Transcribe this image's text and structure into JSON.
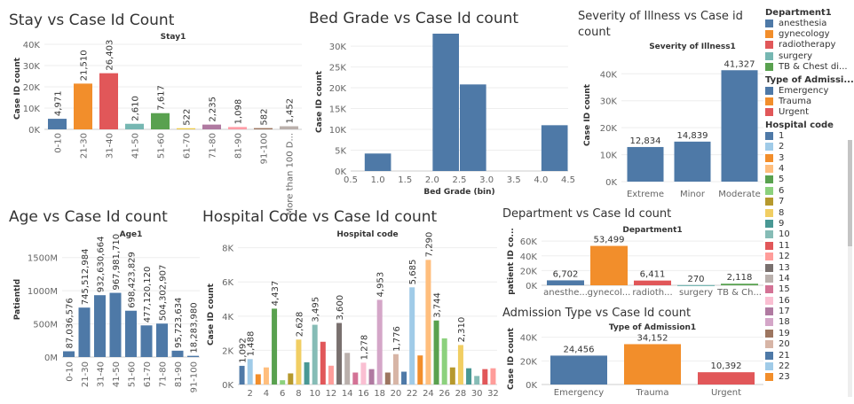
{
  "chart_data": [
    {
      "id": "stay",
      "type": "bar",
      "title": "Stay vs Case Id Count",
      "subtitle": "Stay1",
      "ylabel": "Case ID count",
      "ylim": [
        0,
        40000
      ],
      "yticks": [
        0,
        10000,
        20000,
        30000,
        40000
      ],
      "ytick_labels": [
        "0K",
        "10K",
        "20K",
        "30K",
        "40K"
      ],
      "categories": [
        "0-10",
        "21-30",
        "31-40",
        "41-50",
        "51-60",
        "61-70",
        "71-80",
        "81-90",
        "91-100",
        "More than 100 D..."
      ],
      "values": [
        4971,
        21510,
        26403,
        2610,
        7617,
        522,
        2235,
        1098,
        582,
        1452
      ],
      "data_labels": [
        "4,971",
        "21,510",
        "26,403",
        "2,610",
        "7,617",
        "522",
        "2,235",
        "1,098",
        "582",
        "1,452"
      ],
      "colors": [
        "#4e79a7",
        "#f28e2b",
        "#e15759",
        "#76b7b2",
        "#59a14f",
        "#edc948",
        "#b07aa1",
        "#ff9da7",
        "#9c755f",
        "#bab0ac"
      ]
    },
    {
      "id": "bed",
      "type": "bar",
      "title": "Bed Grade vs Case Id count",
      "xlabel": "Bed Grade (bin)",
      "ylabel": "Case ID count",
      "xlim": [
        0.5,
        4.5
      ],
      "xticks": [
        0.5,
        1.0,
        1.5,
        2.0,
        2.5,
        3.0,
        3.5,
        4.0,
        4.5
      ],
      "xtick_labels": [
        "0.5",
        "1.0",
        "1.5",
        "2.0",
        "2.5",
        "3.0",
        "3.5",
        "4.0",
        "4.5"
      ],
      "ylim": [
        0,
        33000
      ],
      "yticks": [
        0,
        5000,
        10000,
        15000,
        20000,
        25000,
        30000
      ],
      "ytick_labels": [
        "0K",
        "5K",
        "10K",
        "15K",
        "20K",
        "25K",
        "30K"
      ],
      "bins": [
        [
          0.75,
          1.25
        ],
        [
          2.0,
          2.5
        ],
        [
          2.5,
          3.0
        ],
        [
          4.0,
          4.5
        ]
      ],
      "values": [
        4200,
        33000,
        20800,
        11000
      ],
      "color": "#4e79a7"
    },
    {
      "id": "severity",
      "type": "bar",
      "title": "Severity of Illness vs Case id count",
      "subtitle": "Severity of Illness1",
      "ylabel": "Case ID count",
      "ylim": [
        0,
        47000
      ],
      "yticks": [
        0,
        10000,
        20000,
        30000,
        40000
      ],
      "ytick_labels": [
        "0K",
        "10K",
        "20K",
        "30K",
        "40K"
      ],
      "categories": [
        "Extreme",
        "Minor",
        "Moderate"
      ],
      "values": [
        12834,
        14839,
        41327
      ],
      "data_labels": [
        "12,834",
        "14,839",
        "41,327"
      ],
      "color": "#4e79a7"
    },
    {
      "id": "age",
      "type": "bar",
      "title": "Age vs Case Id count",
      "subtitle": "Age1",
      "ylabel": "PatientId",
      "ylim": [
        0,
        1750000000
      ],
      "yticks": [
        0,
        500000000,
        1000000000,
        1500000000
      ],
      "ytick_labels": [
        "0M",
        "500M",
        "1000M",
        "1500M"
      ],
      "categories": [
        "0-10",
        "21-30",
        "31-40",
        "41-50",
        "51-60",
        "61-70",
        "71-80",
        "81-90",
        "91-100"
      ],
      "values": [
        87036576,
        745512984,
        932630664,
        967981710,
        698423829,
        477120120,
        504302907,
        95723634,
        18283980
      ],
      "data_labels": [
        "87,036,576",
        "745,512,984",
        "932,630,664",
        "967,981,710",
        "698,423,829",
        "477,120,120",
        "504,302,907",
        "95,723,634",
        "18,283,980"
      ],
      "color": "#4e79a7"
    },
    {
      "id": "hospital",
      "type": "bar",
      "title": "Hospital Code vs Case Id count",
      "subtitle": "Hospital code",
      "ylabel": "Case ID count",
      "ylim": [
        0,
        8500
      ],
      "yticks": [
        0,
        2000,
        4000,
        6000,
        8000
      ],
      "ytick_labels": [
        "0K",
        "2K",
        "4K",
        "6K",
        "8K"
      ],
      "categories": [
        1,
        2,
        3,
        4,
        5,
        6,
        7,
        8,
        9,
        10,
        11,
        12,
        13,
        14,
        15,
        16,
        17,
        18,
        19,
        20,
        21,
        22,
        23,
        24,
        25,
        26,
        27,
        28,
        29,
        30,
        31,
        32
      ],
      "tick_labels": [
        "2",
        "4",
        "6",
        "8",
        "10",
        "12",
        "14",
        "16",
        "18",
        "20",
        "22",
        "24",
        "26",
        "28",
        "30",
        "32"
      ],
      "values": [
        1092,
        1488,
        600,
        1000,
        4437,
        250,
        650,
        2628,
        1300,
        3495,
        2500,
        1100,
        3600,
        1850,
        700,
        1278,
        900,
        4953,
        700,
        1776,
        750,
        5685,
        1700,
        7290,
        3744,
        2700,
        1000,
        2310,
        950,
        500,
        900,
        950
      ],
      "data_labels": {
        "1": "1,092",
        "2": "1,488",
        "5": "4,437",
        "8": "2,628",
        "10": "3,495",
        "13": "3,600",
        "16": "1,278",
        "18": "4,953",
        "20": "1,776",
        "22": "5,685",
        "24": "7,290",
        "25": "3,744",
        "28": "2,310"
      },
      "colors": [
        "#4e79a7",
        "#a0cbe8",
        "#f28e2b",
        "#ffbe7d",
        "#59a14f",
        "#8cd17d",
        "#b6992d",
        "#f1ce63",
        "#499894",
        "#86bcb6",
        "#e15759",
        "#ff9d9a",
        "#79706e",
        "#bab0ac",
        "#d37295",
        "#fabfd2",
        "#b07aa1",
        "#d4a6c8",
        "#9d7660",
        "#d7b5a6",
        "#4e79a7",
        "#a0cbe8",
        "#f28e2b",
        "#ffbe7d",
        "#59a14f",
        "#8cd17d",
        "#b6992d",
        "#f1ce63",
        "#499894",
        "#86bcb6",
        "#e15759",
        "#ff9d9a"
      ]
    },
    {
      "id": "department",
      "type": "bar",
      "title": "Department vs Case Id count",
      "subtitle": "Department1",
      "ylabel": "patient ID co...",
      "ylim": [
        0,
        65000
      ],
      "yticks": [
        0,
        20000,
        40000,
        60000
      ],
      "ytick_labels": [
        "0K",
        "20K",
        "40K",
        "60K"
      ],
      "categories": [
        "anesthe...",
        "gynecol...",
        "radioth...",
        "surgery",
        "TB & Ch..."
      ],
      "values": [
        6702,
        53499,
        6411,
        270,
        2118
      ],
      "data_labels": [
        "6,702",
        "53,499",
        "6,411",
        "270",
        "2,118"
      ],
      "colors": [
        "#4e79a7",
        "#f28e2b",
        "#e15759",
        "#76b7b2",
        "#59a14f"
      ]
    },
    {
      "id": "admission",
      "type": "bar",
      "title": "Admission Type vs Case Id count",
      "subtitle": "Type of Admission1",
      "ylabel": "Case ID count",
      "ylim": [
        0,
        42000
      ],
      "yticks": [
        0,
        20000,
        40000
      ],
      "ytick_labels": [
        "0K",
        "20K",
        "40K"
      ],
      "categories": [
        "Emergency",
        "Trauma",
        "Urgent"
      ],
      "values": [
        24456,
        34152,
        10392
      ],
      "data_labels": [
        "24,456",
        "34,152",
        "10,392"
      ],
      "colors": [
        "#4e79a7",
        "#f28e2b",
        "#e15759"
      ]
    }
  ],
  "legend": {
    "sections": [
      {
        "title": "Department1",
        "items": [
          {
            "label": "anesthesia",
            "color": "#4e79a7"
          },
          {
            "label": "gynecology",
            "color": "#f28e2b"
          },
          {
            "label": "radiotherapy",
            "color": "#e15759"
          },
          {
            "label": "surgery",
            "color": "#76b7b2"
          },
          {
            "label": "TB & Chest di...",
            "color": "#59a14f"
          }
        ]
      },
      {
        "title": "Type of Admissi...",
        "items": [
          {
            "label": "Emergency",
            "color": "#4e79a7"
          },
          {
            "label": "Trauma",
            "color": "#f28e2b"
          },
          {
            "label": "Urgent",
            "color": "#e15759"
          }
        ]
      },
      {
        "title": "Hospital code",
        "items": [
          {
            "label": "1",
            "color": "#4e79a7"
          },
          {
            "label": "2",
            "color": "#a0cbe8"
          },
          {
            "label": "3",
            "color": "#f28e2b"
          },
          {
            "label": "4",
            "color": "#ffbe7d"
          },
          {
            "label": "5",
            "color": "#59a14f"
          },
          {
            "label": "6",
            "color": "#8cd17d"
          },
          {
            "label": "7",
            "color": "#b6992d"
          },
          {
            "label": "8",
            "color": "#f1ce63"
          },
          {
            "label": "9",
            "color": "#499894"
          },
          {
            "label": "10",
            "color": "#86bcb6"
          },
          {
            "label": "11",
            "color": "#e15759"
          },
          {
            "label": "12",
            "color": "#ff9d9a"
          },
          {
            "label": "13",
            "color": "#79706e"
          },
          {
            "label": "14",
            "color": "#bab0ac"
          },
          {
            "label": "15",
            "color": "#d37295"
          },
          {
            "label": "16",
            "color": "#fabfd2"
          },
          {
            "label": "17",
            "color": "#b07aa1"
          },
          {
            "label": "18",
            "color": "#d4a6c8"
          },
          {
            "label": "19",
            "color": "#9d7660"
          },
          {
            "label": "20",
            "color": "#d7b5a6"
          },
          {
            "label": "21",
            "color": "#4e79a7"
          },
          {
            "label": "22",
            "color": "#a0cbe8"
          },
          {
            "label": "23",
            "color": "#f28e2b"
          }
        ]
      }
    ]
  }
}
